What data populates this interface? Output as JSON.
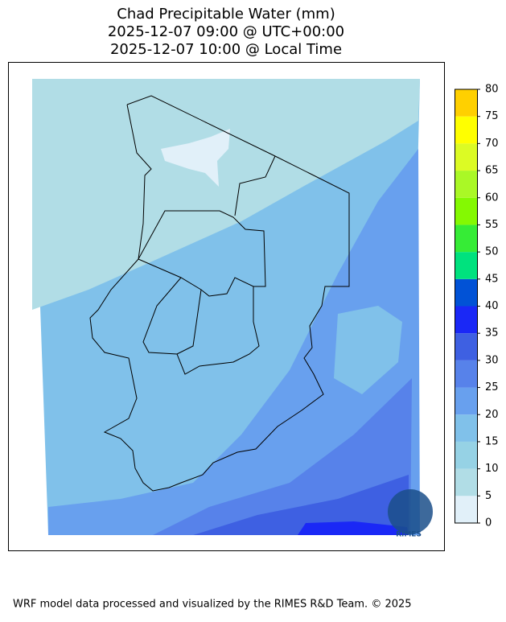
{
  "title": [
    "Chad Precipitable Water (mm)",
    "2025-12-07 09:00 @ UTC+00:00",
    "2025-12-07 10:00 @ Local Time"
  ],
  "colorbar": {
    "ticks": [
      0,
      5,
      10,
      15,
      20,
      25,
      30,
      35,
      40,
      45,
      50,
      55,
      60,
      65,
      70,
      75,
      80
    ],
    "colors": [
      "#e1f0f9",
      "#b1dde6",
      "#96d2e5",
      "#80c1ea",
      "#68a0ee",
      "#5782ea",
      "#3e60e2",
      "#1a28f6",
      "#0152d6",
      "#00e27e",
      "#36ec36",
      "#84f902",
      "#aaf826",
      "#dcfb24",
      "#ffff00",
      "#ffd000"
    ]
  },
  "logo": "RIMES",
  "footer": "WRF model data processed and visualized by the RIMES R&D Team. © 2025"
}
